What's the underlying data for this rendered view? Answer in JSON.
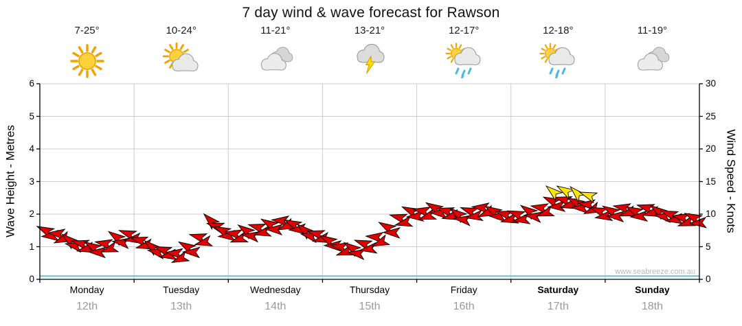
{
  "chart_data": {
    "type": "wind_arrow_series",
    "title": "7 day wind & wave forecast for Rawson",
    "watermark": "www.seabreeze.com.au",
    "y_left": {
      "label": "Wave Height - Metres",
      "min": 0,
      "max": 6,
      "ticks": [
        0,
        1,
        2,
        3,
        4,
        5,
        6
      ]
    },
    "y_right": {
      "label": "Wind Speed - Knots",
      "min": 0,
      "max": 30,
      "ticks": [
        0,
        5,
        10,
        15,
        20,
        25,
        30
      ]
    },
    "grid": true,
    "days": [
      {
        "name": "Monday",
        "date": "12th",
        "temp": "7-25°",
        "icon": "sunny",
        "bold": false
      },
      {
        "name": "Tuesday",
        "date": "13th",
        "temp": "10-24°",
        "icon": "partly-cloudy",
        "bold": false
      },
      {
        "name": "Wednesday",
        "date": "14th",
        "temp": "11-21°",
        "icon": "cloudy",
        "bold": false
      },
      {
        "name": "Thursday",
        "date": "15th",
        "temp": "13-21°",
        "icon": "thunderstorm",
        "bold": false
      },
      {
        "name": "Friday",
        "date": "16th",
        "temp": "12-17°",
        "icon": "sun-showers",
        "bold": false
      },
      {
        "name": "Saturday",
        "date": "17th",
        "temp": "12-18°",
        "icon": "sun-showers",
        "bold": true
      },
      {
        "name": "Sunday",
        "date": "18th",
        "temp": "11-19°",
        "icon": "cloudy",
        "bold": true
      }
    ],
    "points_per_day": 8,
    "wind_knots": [
      7.5,
      7,
      6,
      5.5,
      5,
      5.5,
      6.5,
      7,
      6,
      5,
      4.5,
      4,
      5,
      6.5,
      9,
      7.5,
      7,
      7.5,
      8,
      8.5,
      9,
      8.5,
      7.5,
      7,
      6,
      5,
      4.8,
      5.5,
      6.5,
      8,
      9.5,
      10.5,
      10.5,
      11,
      10.5,
      10,
      10.5,
      11,
      10.5,
      10,
      10,
      10.5,
      11,
      12,
      12.2,
      11.8,
      11.5,
      10.5,
      10.5,
      11,
      10.5,
      11,
      10.5,
      10,
      9.5,
      9.5
    ],
    "wind_dir_deg": [
      205,
      185,
      220,
      195,
      210,
      190,
      215,
      200,
      195,
      220,
      200,
      185,
      210,
      195,
      225,
      205,
      190,
      215,
      195,
      210,
      185,
      205,
      220,
      195,
      210,
      190,
      215,
      200,
      185,
      210,
      195,
      205,
      190,
      210,
      195,
      215,
      200,
      185,
      210,
      195,
      200,
      215,
      190,
      205,
      195,
      210,
      185,
      200,
      210,
      190,
      205,
      195,
      215,
      200,
      190,
      205
    ],
    "strong_indices": [
      43,
      44,
      45,
      46
    ],
    "wave_height_line_m": 0.1,
    "colors": {
      "arrow": "#e00000",
      "arrow_strong": "#ffe400",
      "outline": "#000000",
      "grid": "#cccccc",
      "axis": "#000000",
      "wave_line": "#72cfe0"
    }
  }
}
